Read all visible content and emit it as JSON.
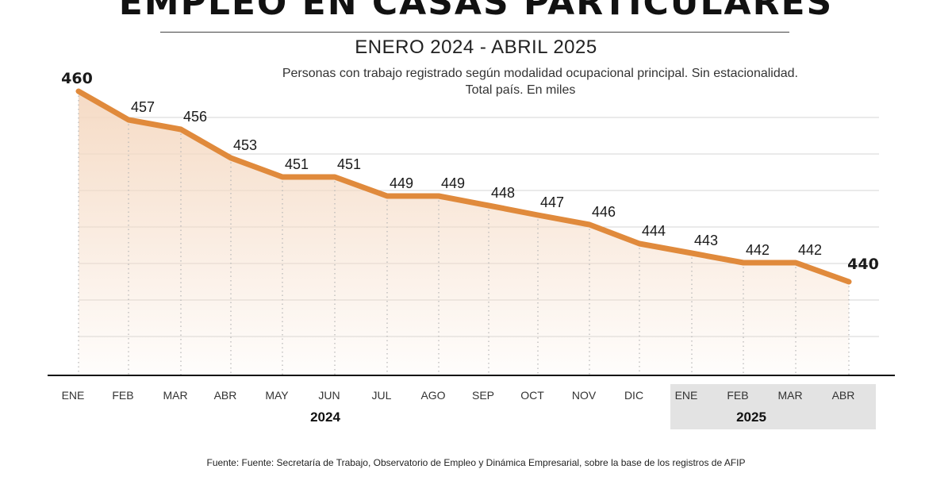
{
  "header": {
    "title": "EMPLEO EN CASAS PARTICULARES",
    "subtitle": "ENERO 2024 - ABRIL 2025",
    "description_line1": "Personas con trabajo registrado según modalidad ocupacional principal. Sin estacionalidad.",
    "description_line2": "Total país.  En miles"
  },
  "source": "Fuente: Fuente: Secretaría de Trabajo, Observatorio de Empleo y Dinámica Empresarial, sobre la base de los registros de AFIP",
  "colors": {
    "line": "#e08a3c",
    "area_top": "#f5d9c2",
    "year_band": "#e3e3e3"
  },
  "chart_data": {
    "type": "area",
    "categories": [
      "ENE",
      "FEB",
      "MAR",
      "ABR",
      "MAY",
      "JUN",
      "JUL",
      "AGO",
      "SEP",
      "OCT",
      "NOV",
      "DIC",
      "ENE",
      "FEB",
      "MAR",
      "ABR"
    ],
    "years": [
      {
        "label": "2024",
        "from_index": 0,
        "to_index": 11,
        "highlighted": false
      },
      {
        "label": "2025",
        "from_index": 12,
        "to_index": 15,
        "highlighted": true
      }
    ],
    "series": [
      {
        "values": [
          460,
          457,
          456,
          453,
          451,
          451,
          449,
          449,
          448,
          447,
          446,
          444,
          443,
          442,
          442,
          440
        ]
      }
    ],
    "data_labels": [
      "460",
      "457",
      "456",
      "453",
      "451",
      "451",
      "449",
      "449",
      "448",
      "447",
      "446",
      "444",
      "443",
      "442",
      "442",
      "440"
    ],
    "bold_labels": [
      0,
      15
    ],
    "ylim": [
      420,
      461
    ],
    "grid": true,
    "legend": "none"
  }
}
